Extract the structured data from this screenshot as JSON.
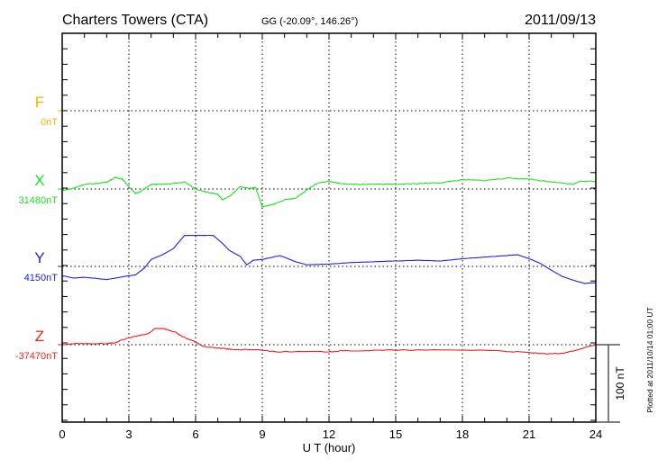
{
  "header": {
    "station": "Charters Towers (CTA)",
    "coords": "GG (-20.09°, 146.26°)",
    "date": "2011/09/13"
  },
  "footer": {
    "plotted": "Plotted at 2011/10/14 01:00 UT",
    "scale_label": "100 nT"
  },
  "chart_data": {
    "type": "line",
    "title": "Charters Towers (CTA)",
    "xlabel": "U T (hour)",
    "ylabel": "",
    "xlim": [
      0,
      24
    ],
    "xticks": [
      0,
      3,
      6,
      9,
      12,
      15,
      18,
      21,
      24
    ],
    "xtick_labels": [
      "0",
      "3",
      "6",
      "9",
      "12",
      "15",
      "18",
      "21",
      "24"
    ],
    "scale_bar_nT": 100,
    "grid": true,
    "series": [
      {
        "name": "F",
        "baseline_label": "0nT",
        "color": "#f5b400",
        "x": [],
        "values": []
      },
      {
        "name": "X",
        "baseline_label": "31480nT",
        "color": "#22e022",
        "x": [
          0,
          0.5,
          1,
          1.5,
          2,
          2.4,
          2.7,
          3,
          3.3,
          3.6,
          4,
          4.4,
          5,
          5.5,
          6,
          6.5,
          7,
          7.2,
          7.6,
          8,
          8.4,
          8.7,
          9,
          9.5,
          10,
          10.5,
          11,
          11.5,
          12,
          12.5,
          13,
          14,
          15,
          16,
          17,
          18,
          19,
          20,
          21,
          22,
          23,
          23.3,
          24
        ],
        "values": [
          -2,
          1,
          6,
          7,
          9,
          15,
          13,
          3,
          -6,
          -2,
          6,
          6,
          7,
          9,
          0,
          -4,
          -7,
          -14,
          -8,
          3,
          1,
          2,
          -23,
          -20,
          -14,
          -12,
          -1,
          8,
          10,
          7,
          6,
          6,
          6,
          7,
          8,
          12,
          11,
          14,
          13,
          9,
          6,
          10,
          10
        ]
      },
      {
        "name": "Y",
        "baseline_label": "4150nT",
        "color": "#2020e8",
        "x": [
          0,
          0.5,
          1,
          2,
          3,
          3.3,
          3.7,
          4,
          4.5,
          5,
          5.5,
          6,
          6.8,
          7.2,
          7.5,
          8,
          8.3,
          8.6,
          9,
          9.8,
          10.5,
          11,
          12,
          13,
          14,
          15,
          16,
          17,
          18,
          19,
          20,
          20.5,
          21,
          21.5,
          22,
          22.5,
          23,
          23.5,
          24
        ],
        "values": [
          -12,
          -15,
          -14,
          -17,
          -12,
          -11,
          -2,
          9,
          15,
          23,
          40,
          40,
          40,
          30,
          21,
          13,
          2,
          8,
          9,
          14,
          6,
          2,
          3,
          5,
          6,
          7,
          8,
          7,
          10,
          12,
          14,
          15,
          10,
          4,
          -5,
          -13,
          -18,
          -22,
          -21
        ]
      },
      {
        "name": "Z",
        "baseline_label": "-37470nT",
        "color": "#f02020",
        "x": [
          0,
          0.5,
          2,
          2.3,
          3,
          3.85,
          4.2,
          4.56,
          5.1,
          5.36,
          5.96,
          6.37,
          7.3,
          7.6,
          8.96,
          9.65,
          12,
          12.6,
          15,
          19.1,
          20.9,
          21.5,
          22.5,
          23.1,
          24
        ],
        "values": [
          0,
          1.5,
          1.5,
          2,
          9,
          14,
          21,
          21,
          16,
          11,
          4,
          -2.6,
          -5,
          -6,
          -7,
          -9,
          -9,
          -8,
          -7,
          -7,
          -10,
          -11.5,
          -11.5,
          -7,
          0
        ]
      }
    ]
  }
}
